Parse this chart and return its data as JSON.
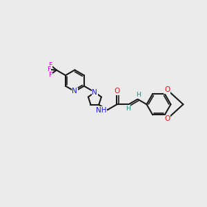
{
  "bg_color": "#ebebeb",
  "bond_color": "#1a1a1a",
  "N_color": "#1818d8",
  "O_color": "#d81818",
  "F_color": "#cc00cc",
  "H_color": "#2a8888",
  "lw": 1.5,
  "lw2": 1.2,
  "fs": 7.5,
  "fs2": 6.8,
  "doff": 0.09,
  "figsize": [
    3.0,
    3.0
  ],
  "dpi": 100,
  "xlim": [
    -1.0,
    11.0
  ],
  "ylim": [
    2.0,
    8.5
  ]
}
